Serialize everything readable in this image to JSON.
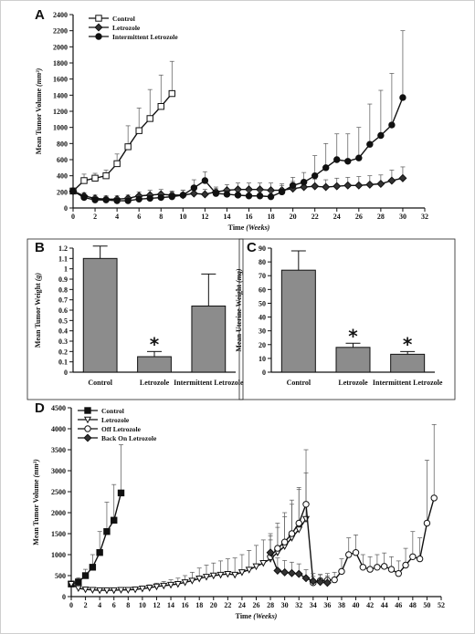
{
  "chart_data": [
    {
      "panel": "A",
      "type": "line",
      "xlabel": "Time (Weeks)",
      "ylabel": "Mean Tumor Volume (mm³)",
      "xlim": [
        0,
        32
      ],
      "ylim": [
        0,
        2400
      ],
      "xticks": [
        0,
        2,
        4,
        6,
        8,
        10,
        12,
        14,
        16,
        18,
        20,
        22,
        24,
        26,
        28,
        30,
        32
      ],
      "yticks": [
        0,
        200,
        400,
        600,
        800,
        1000,
        1200,
        1400,
        1600,
        1800,
        2000,
        2200,
        2400
      ],
      "legend_position": "top-left",
      "series": [
        {
          "name": "Control",
          "marker": "square-open",
          "x": [
            0,
            1,
            2,
            3,
            4,
            5,
            6,
            7,
            8,
            9
          ],
          "y": [
            210,
            340,
            370,
            400,
            550,
            760,
            960,
            1110,
            1260,
            1420
          ],
          "err": [
            40,
            80,
            60,
            70,
            120,
            260,
            280,
            360,
            390,
            400
          ]
        },
        {
          "name": "Letrozole",
          "marker": "diamond",
          "x": [
            0,
            1,
            2,
            3,
            4,
            5,
            6,
            7,
            8,
            9,
            10,
            11,
            12,
            13,
            14,
            15,
            16,
            17,
            18,
            19,
            20,
            21,
            22,
            23,
            24,
            25,
            26,
            27,
            28,
            29,
            30
          ],
          "y": [
            210,
            150,
            120,
            110,
            110,
            120,
            150,
            160,
            170,
            160,
            160,
            180,
            170,
            200,
            220,
            230,
            230,
            230,
            220,
            220,
            240,
            260,
            270,
            260,
            270,
            280,
            280,
            290,
            300,
            340,
            370
          ],
          "err": [
            30,
            40,
            40,
            40,
            40,
            40,
            50,
            60,
            60,
            50,
            60,
            60,
            60,
            60,
            70,
            80,
            80,
            80,
            90,
            80,
            90,
            90,
            90,
            90,
            100,
            100,
            110,
            110,
            110,
            130,
            140
          ]
        },
        {
          "name": "Intermittent Letrozole",
          "marker": "circle-open-and-filled",
          "x": [
            0,
            1,
            2,
            3,
            4,
            5,
            6,
            7,
            8,
            9,
            10,
            11,
            12,
            13,
            14,
            15,
            16,
            17,
            18,
            19,
            20,
            21,
            22,
            23,
            24,
            25,
            26,
            27,
            28,
            29,
            30
          ],
          "y": [
            210,
            130,
            100,
            100,
            90,
            90,
            110,
            120,
            130,
            140,
            160,
            250,
            340,
            180,
            170,
            160,
            150,
            150,
            140,
            200,
            280,
            320,
            400,
            500,
            600,
            580,
            620,
            790,
            900,
            1030,
            1370
          ],
          "err": [
            30,
            30,
            40,
            40,
            40,
            40,
            40,
            50,
            50,
            60,
            60,
            100,
            110,
            60,
            60,
            60,
            60,
            60,
            60,
            80,
            100,
            120,
            250,
            300,
            320,
            340,
            380,
            500,
            560,
            640,
            830
          ]
        }
      ]
    },
    {
      "panel": "B",
      "type": "bar",
      "ylabel": "Mean Tumor Weight (g)",
      "ylim": [
        0,
        1.2
      ],
      "yticks": [
        0,
        0.1,
        0.2,
        0.3,
        0.4,
        0.5,
        0.6,
        0.7,
        0.8,
        0.9,
        1,
        1.1,
        1.2
      ],
      "ytick_labels": [
        "0",
        "0.1",
        "0.2",
        "0.3",
        "0.4",
        "0.5",
        "0.6",
        "0.7",
        "0.8",
        "0.9",
        "1",
        "1.1",
        "1.2"
      ],
      "categories": [
        "Control",
        "Letrozole",
        "Intermittent Letrozole"
      ],
      "values": [
        1.1,
        0.15,
        0.64
      ],
      "err": [
        0.12,
        0.05,
        0.31
      ],
      "significance": [
        false,
        true,
        false
      ],
      "significance_mark": "*"
    },
    {
      "panel": "C",
      "type": "bar",
      "ylabel": "Mean Uterine Weight (mg)",
      "ylim": [
        0,
        90
      ],
      "yticks": [
        0,
        10,
        20,
        30,
        40,
        50,
        60,
        70,
        80,
        90
      ],
      "categories": [
        "Control",
        "Letrozole",
        "Intermittent Letrozole"
      ],
      "values": [
        74,
        18,
        13
      ],
      "err": [
        14,
        3,
        2
      ],
      "significance": [
        false,
        true,
        true
      ],
      "significance_mark": "*"
    },
    {
      "panel": "D",
      "type": "line",
      "xlabel": "Time (Weeks)",
      "ylabel": "Mean Tumor Volume (mm³)",
      "xlim": [
        0,
        52
      ],
      "ylim": [
        0,
        4500
      ],
      "xticks": [
        0,
        2,
        4,
        6,
        8,
        10,
        12,
        14,
        16,
        18,
        20,
        22,
        24,
        26,
        28,
        30,
        32,
        34,
        36,
        38,
        40,
        42,
        44,
        46,
        48,
        50,
        52
      ],
      "yticks": [
        0,
        500,
        1000,
        1500,
        2000,
        2500,
        3000,
        3500,
        4000,
        4500
      ],
      "legend_position": "top-left",
      "series": [
        {
          "name": "Control",
          "marker": "square-filled",
          "x": [
            0,
            1,
            2,
            3,
            4,
            5,
            6,
            7
          ],
          "y": [
            300,
            350,
            500,
            700,
            1050,
            1550,
            1820,
            2470
          ],
          "err": [
            50,
            100,
            150,
            300,
            500,
            700,
            850,
            1150
          ]
        },
        {
          "name": "Letrozole",
          "marker": "triangle-down-open",
          "x": [
            0,
            1,
            2,
            3,
            4,
            5,
            6,
            7,
            8,
            9,
            10,
            11,
            12,
            13,
            14,
            15,
            16,
            17,
            18,
            19,
            20,
            21,
            22,
            23,
            24,
            25,
            26,
            27,
            28,
            29,
            30,
            31,
            32,
            33
          ],
          "y": [
            300,
            200,
            170,
            160,
            150,
            150,
            150,
            160,
            160,
            170,
            190,
            210,
            240,
            260,
            280,
            300,
            340,
            380,
            430,
            470,
            500,
            520,
            540,
            520,
            580,
            640,
            720,
            800,
            900,
            1050,
            1200,
            1400,
            1600,
            1850
          ],
          "err": [
            40,
            40,
            40,
            40,
            40,
            40,
            40,
            50,
            50,
            50,
            60,
            70,
            80,
            100,
            120,
            140,
            160,
            200,
            250,
            280,
            300,
            330,
            360,
            400,
            420,
            460,
            500,
            550,
            600,
            700,
            800,
            900,
            1000,
            1100
          ]
        },
        {
          "name": "Off Letrozole",
          "marker": "circle-open",
          "x": [
            28,
            29,
            30,
            31,
            32,
            33,
            34,
            35,
            36,
            37,
            38,
            39,
            40,
            41,
            42,
            43,
            44,
            45,
            46,
            47,
            48,
            49,
            50,
            51
          ],
          "y": [
            950,
            1150,
            1300,
            1500,
            1750,
            2200,
            330,
            380,
            390,
            400,
            600,
            1000,
            1050,
            700,
            650,
            700,
            720,
            650,
            550,
            750,
            950,
            900,
            1750,
            2350
          ],
          "err": [
            400,
            500,
            600,
            700,
            800,
            1300,
            150,
            150,
            160,
            180,
            300,
            400,
            420,
            300,
            300,
            300,
            320,
            300,
            300,
            400,
            600,
            500,
            1500,
            1750
          ]
        },
        {
          "name": "Back On Letrozole",
          "marker": "diamond-filled",
          "x": [
            28,
            29,
            30,
            31,
            32,
            33,
            34,
            35,
            36
          ],
          "y": [
            1050,
            620,
            580,
            560,
            540,
            440,
            370,
            350,
            330
          ],
          "err": [
            400,
            300,
            280,
            260,
            240,
            200,
            180,
            170,
            160
          ]
        }
      ]
    }
  ]
}
